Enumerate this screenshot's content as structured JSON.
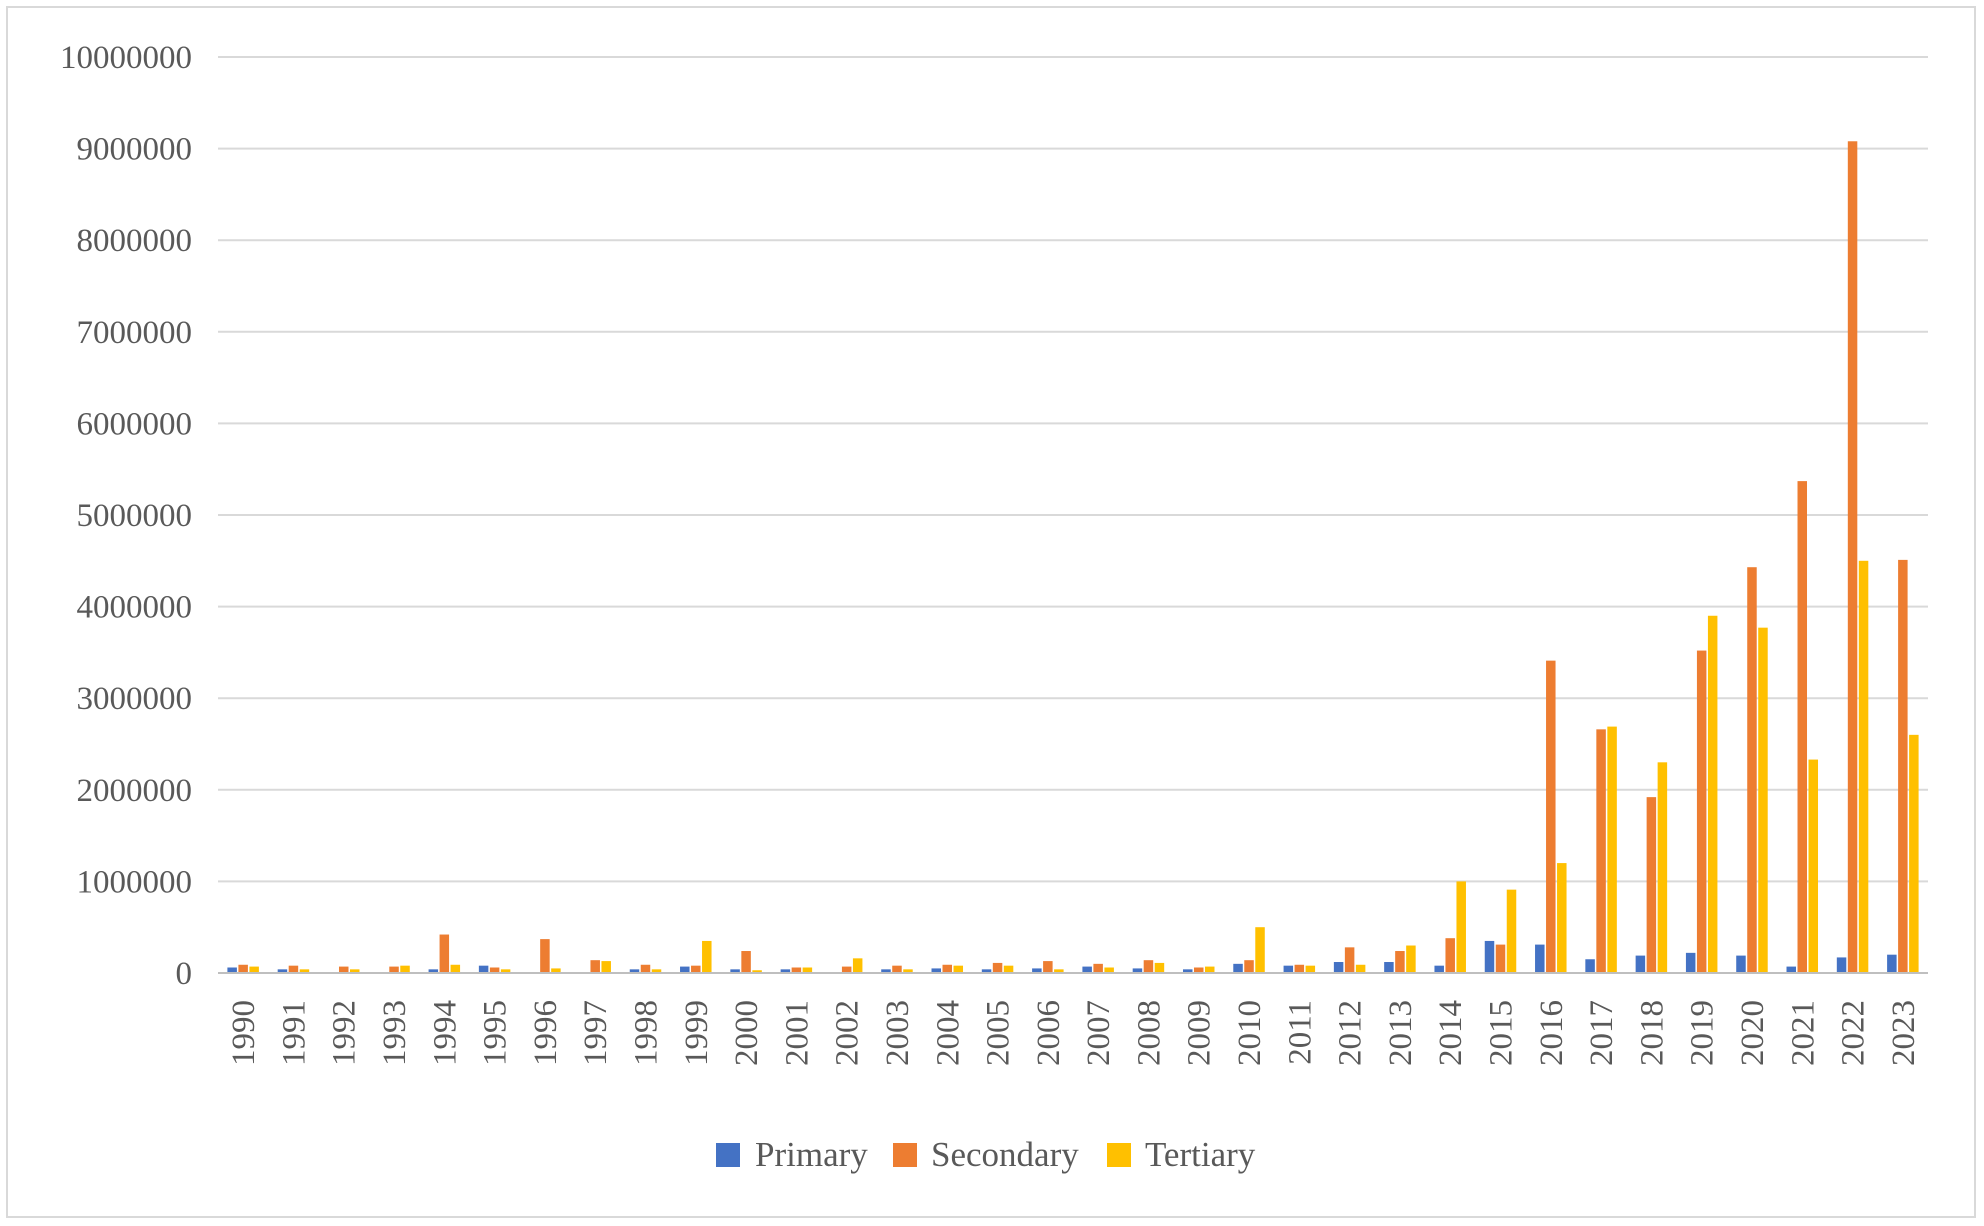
{
  "chart_data": {
    "type": "bar",
    "title": "",
    "xlabel": "",
    "ylabel": "",
    "ylim": [
      0,
      10000000
    ],
    "yticks": [
      0,
      1000000,
      2000000,
      3000000,
      4000000,
      5000000,
      6000000,
      7000000,
      8000000,
      9000000,
      10000000
    ],
    "grid": true,
    "legend_position": "bottom",
    "categories": [
      "1990",
      "1991",
      "1992",
      "1993",
      "1994",
      "1995",
      "1996",
      "1997",
      "1998",
      "1999",
      "2000",
      "2001",
      "2002",
      "2003",
      "2004",
      "2005",
      "2006",
      "2007",
      "2008",
      "2009",
      "2010",
      "2011",
      "2012",
      "2013",
      "2014",
      "2015",
      "2016",
      "2017",
      "2018",
      "2019",
      "2020",
      "2021",
      "2022",
      "2023"
    ],
    "series": [
      {
        "name": "Primary",
        "color": "#4472c4",
        "values": [
          60000,
          40000,
          5000,
          10000,
          40000,
          80000,
          10000,
          10000,
          40000,
          70000,
          40000,
          40000,
          10000,
          40000,
          50000,
          40000,
          50000,
          70000,
          50000,
          40000,
          100000,
          80000,
          120000,
          120000,
          80000,
          350000,
          310000,
          150000,
          190000,
          220000,
          190000,
          70000,
          170000,
          200000
        ]
      },
      {
        "name": "Secondary",
        "color": "#ed7d31",
        "values": [
          90000,
          80000,
          70000,
          70000,
          420000,
          60000,
          370000,
          140000,
          90000,
          80000,
          240000,
          60000,
          70000,
          80000,
          90000,
          110000,
          130000,
          100000,
          140000,
          60000,
          140000,
          90000,
          280000,
          240000,
          380000,
          310000,
          3410000,
          2660000,
          1920000,
          3520000,
          4430000,
          5370000,
          9080000,
          4510000
        ]
      },
      {
        "name": "Tertiary",
        "color": "#ffc000",
        "values": [
          70000,
          40000,
          40000,
          80000,
          90000,
          40000,
          50000,
          130000,
          40000,
          350000,
          30000,
          60000,
          160000,
          40000,
          80000,
          80000,
          40000,
          60000,
          110000,
          70000,
          500000,
          80000,
          90000,
          300000,
          1000000,
          910000,
          1200000,
          2690000,
          2300000,
          3900000,
          3770000,
          2330000,
          4500000,
          2600000
        ]
      }
    ]
  }
}
